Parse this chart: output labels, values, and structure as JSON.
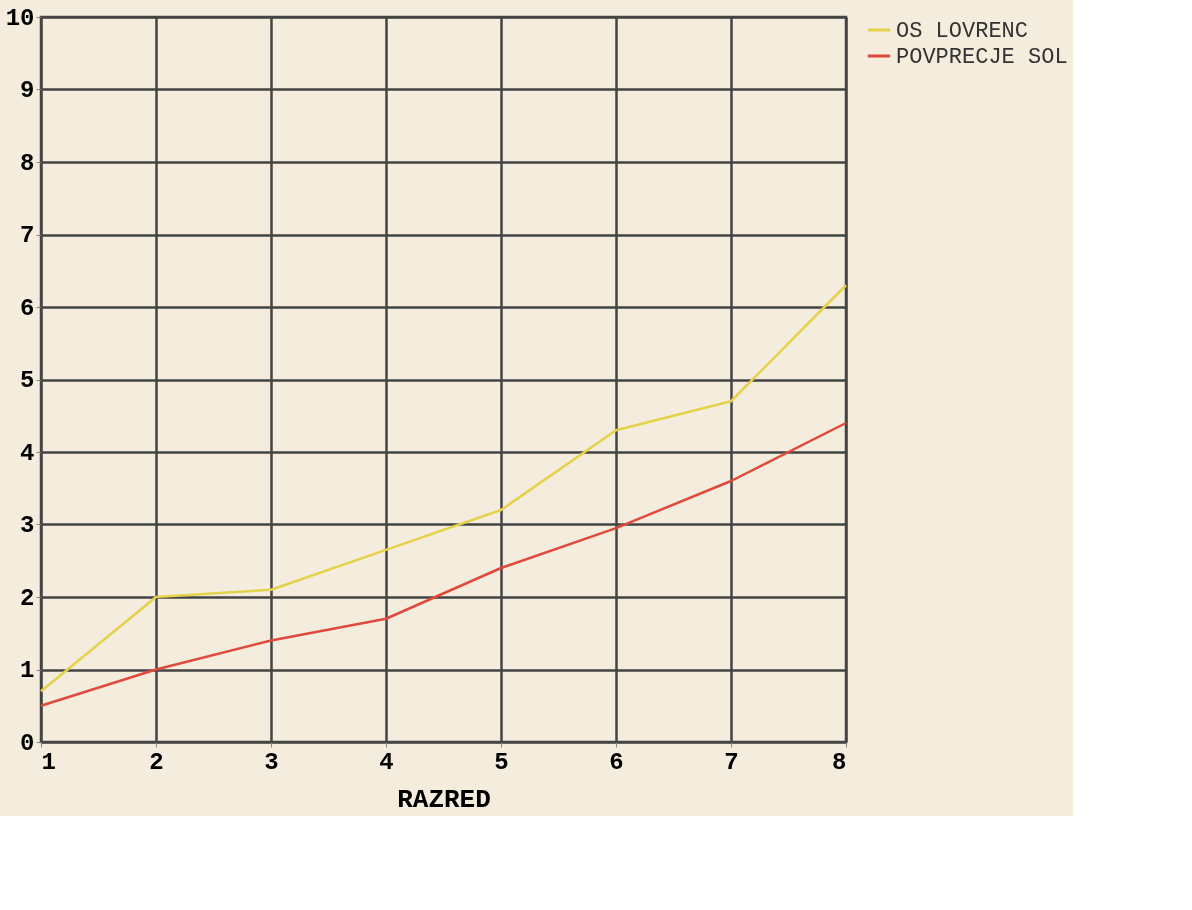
{
  "chart_data": {
    "type": "line",
    "xlabel": "RAZRED",
    "x": [
      1,
      2,
      3,
      4,
      5,
      6,
      7,
      8
    ],
    "series": [
      {
        "name": "OS LOVRENC",
        "color": "#e6d24a",
        "values": [
          0.7,
          2.0,
          2.1,
          2.65,
          3.2,
          4.3,
          4.7,
          6.3
        ]
      },
      {
        "name": "POVPRECJE SOL",
        "color": "#e04a3c",
        "values": [
          0.5,
          1.0,
          1.4,
          1.7,
          2.4,
          2.95,
          3.6,
          4.4
        ]
      }
    ],
    "xlim": [
      1,
      8
    ],
    "xticks": [
      1,
      2,
      3,
      4,
      5,
      6,
      7,
      8
    ],
    "ylim": [
      0,
      10
    ],
    "yticks": [
      0,
      1,
      2,
      3,
      4,
      5,
      6,
      7,
      8,
      9,
      10
    ],
    "grid": true,
    "legend": "top right",
    "marker": "none",
    "line_style": "solid"
  }
}
